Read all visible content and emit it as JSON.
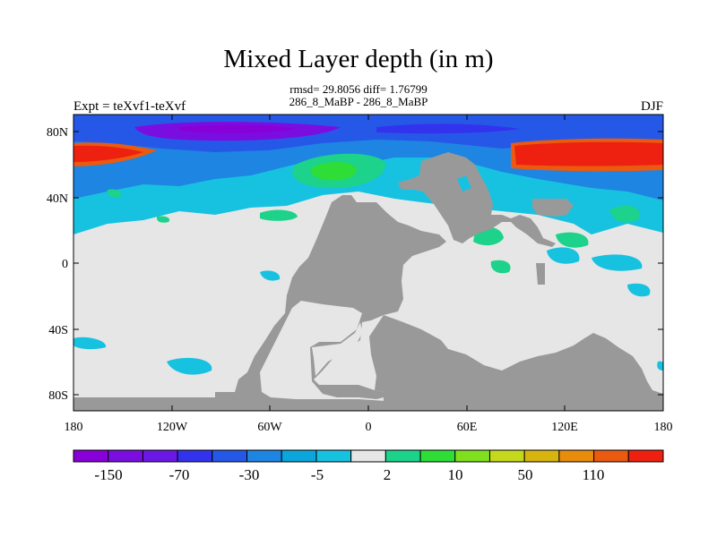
{
  "title": "Mixed Layer depth (in m)",
  "stats_line": "rmsd= 29.8056 diff= 1.76799",
  "subtitle": "286_8_MaBP - 286_8_MaBP",
  "left_label": "Expt = teXvf1-teXvf",
  "right_label": "DJF",
  "y_ticks": [
    "80N",
    "40N",
    "0",
    "40S",
    "80S"
  ],
  "x_ticks": [
    "180",
    "120W",
    "60W",
    "0",
    "60E",
    "120E",
    "180"
  ],
  "colors": {
    "land": "#999999",
    "neutral": "#e6e6e6",
    "palette": [
      "#8800d8",
      "#7a0ee0",
      "#6b18e6",
      "#3333ee",
      "#2658e8",
      "#1e85e2",
      "#0aa6dc",
      "#17c2e0",
      "#e6e6e6",
      "#1dd28a",
      "#2ede36",
      "#7fe01e",
      "#c4d81c",
      "#d8b40e",
      "#e88c0c",
      "#ea5a10",
      "#ee2010"
    ]
  },
  "colorbar_labels": [
    "-150",
    "-70",
    "-30",
    "-5",
    "2",
    "10",
    "50",
    "110"
  ]
}
